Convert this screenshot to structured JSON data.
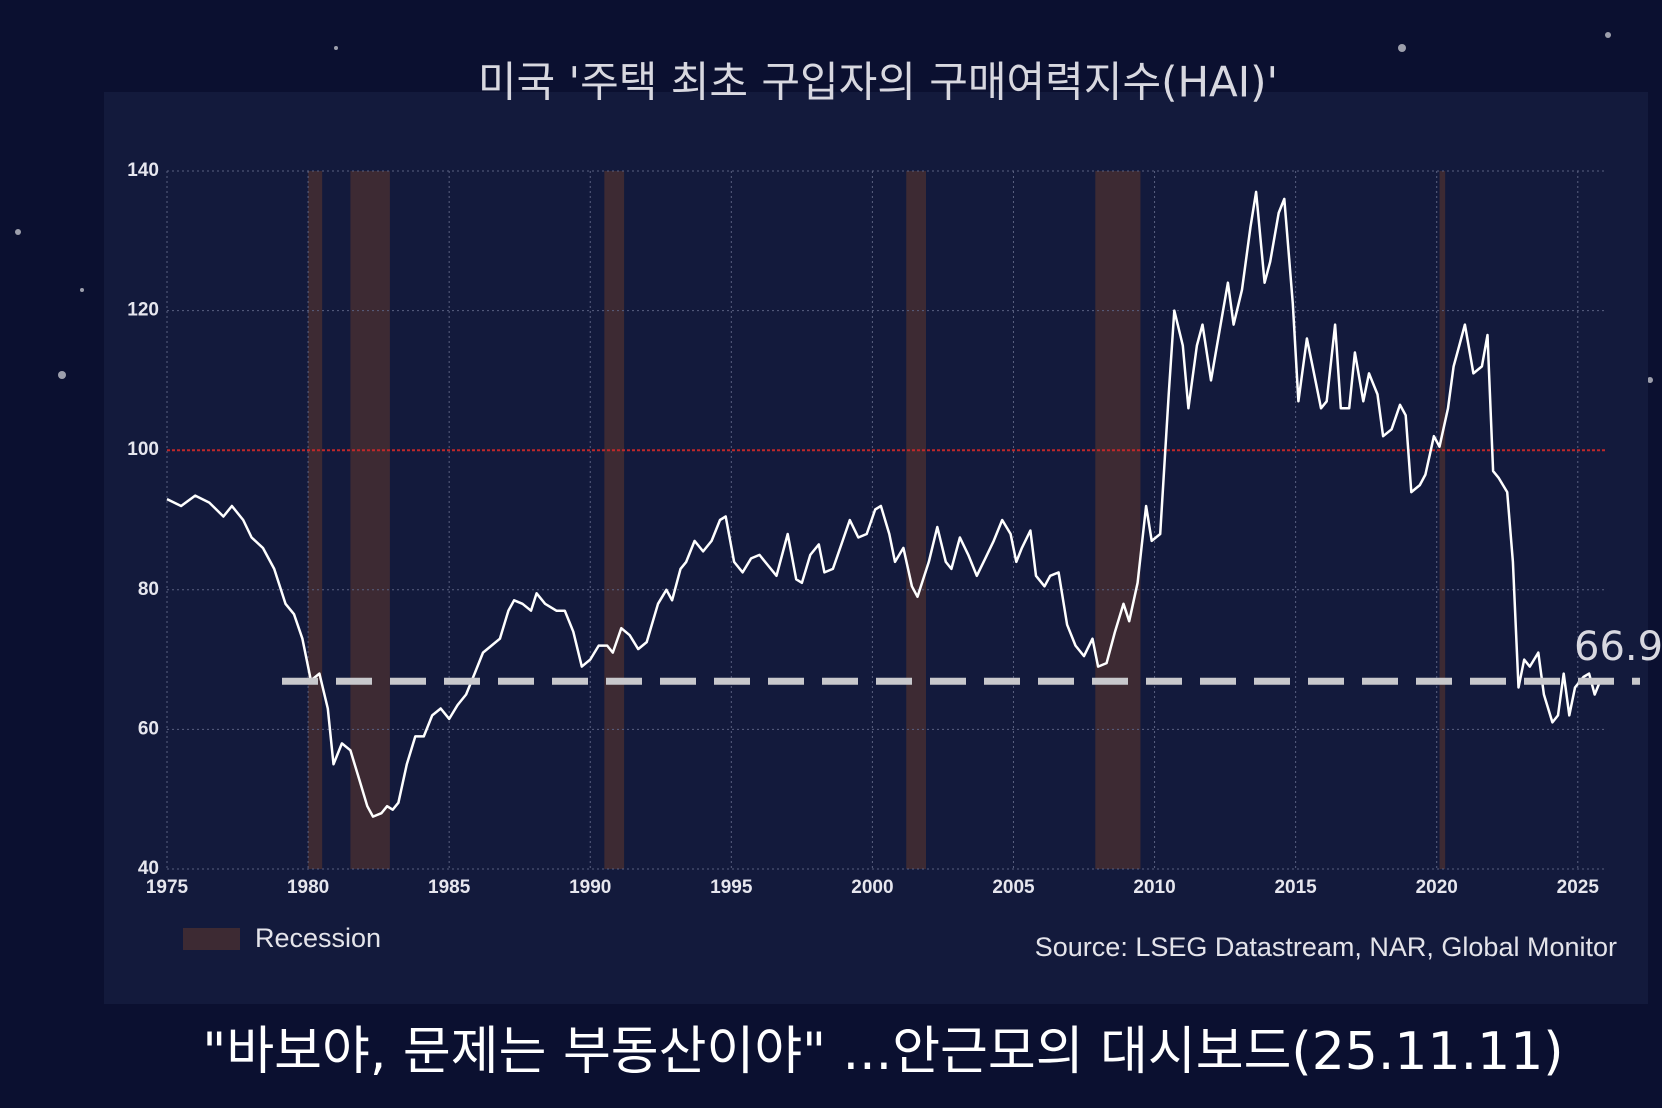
{
  "chart_data": {
    "type": "line",
    "title": "미국 '주택 최초 구입자의 구매여력지수(HAI)'",
    "caption": "\"바보야, 문제는 부동산이야\" ...안근모의 대시보드(25.11.11)",
    "source": "Source: LSEG Datastream, NAR, Global Monitor",
    "legend_label": "Recession",
    "color": "#ffffff",
    "recession_color": "#3d2a33",
    "threshold": 100,
    "threshold_color": "#c0282a",
    "reference_value": 66.9,
    "reference_color": "#c8c8cc",
    "grid": true,
    "xlim": [
      1975,
      2026
    ],
    "ylim": [
      40,
      140
    ],
    "xticks": [
      1975,
      1980,
      1985,
      1990,
      1995,
      2000,
      2005,
      2010,
      2015,
      2020,
      2025
    ],
    "yticks": [
      40,
      60,
      80,
      100,
      120,
      140
    ],
    "recessions": [
      [
        1980.0,
        1980.5
      ],
      [
        1981.5,
        1982.9
      ],
      [
        1990.5,
        1991.2
      ],
      [
        2001.2,
        2001.9
      ],
      [
        2007.9,
        2009.5
      ],
      [
        2020.1,
        2020.3
      ]
    ],
    "x": [
      1975.0,
      1975.5,
      1976.0,
      1976.5,
      1977.0,
      1977.3,
      1977.7,
      1978.0,
      1978.4,
      1978.8,
      1979.2,
      1979.5,
      1979.8,
      1980.1,
      1980.4,
      1980.7,
      1980.9,
      1981.2,
      1981.5,
      1981.8,
      1982.1,
      1982.3,
      1982.6,
      1982.8,
      1983.0,
      1983.2,
      1983.5,
      1983.8,
      1984.1,
      1984.4,
      1984.7,
      1985.0,
      1985.3,
      1985.6,
      1985.9,
      1986.2,
      1986.5,
      1986.8,
      1987.1,
      1987.3,
      1987.6,
      1987.9,
      1988.1,
      1988.4,
      1988.8,
      1989.1,
      1989.4,
      1989.7,
      1990.0,
      1990.3,
      1990.6,
      1990.8,
      1991.1,
      1991.4,
      1991.7,
      1992.0,
      1992.4,
      1992.7,
      1992.9,
      1993.2,
      1993.4,
      1993.7,
      1994.0,
      1994.3,
      1994.6,
      1994.8,
      1995.1,
      1995.4,
      1995.7,
      1996.0,
      1996.3,
      1996.6,
      1997.0,
      1997.3,
      1997.5,
      1997.8,
      1998.1,
      1998.3,
      1998.6,
      1998.9,
      1999.2,
      1999.5,
      1999.8,
      2000.1,
      2000.3,
      2000.6,
      2000.8,
      2001.1,
      2001.4,
      2001.6,
      2002.0,
      2002.3,
      2002.6,
      2002.8,
      2003.1,
      2003.4,
      2003.7,
      2004.0,
      2004.3,
      2004.6,
      2004.9,
      2005.1,
      2005.3,
      2005.6,
      2005.8,
      2006.1,
      2006.3,
      2006.6,
      2006.9,
      2007.2,
      2007.5,
      2007.8,
      2008.0,
      2008.3,
      2008.6,
      2008.9,
      2009.1,
      2009.4,
      2009.7,
      2009.9,
      2010.2,
      2010.5,
      2010.7,
      2011.0,
      2011.2,
      2011.5,
      2011.7,
      2012.0,
      2012.3,
      2012.6,
      2012.8,
      2013.1,
      2013.4,
      2013.6,
      2013.9,
      2014.1,
      2014.4,
      2014.6,
      2014.9,
      2015.1,
      2015.4,
      2015.6,
      2015.9,
      2016.1,
      2016.4,
      2016.6,
      2016.9,
      2017.1,
      2017.4,
      2017.6,
      2017.9,
      2018.1,
      2018.4,
      2018.7,
      2018.9,
      2019.1,
      2019.4,
      2019.6,
      2019.9,
      2020.1,
      2020.4,
      2020.6,
      2020.8,
      2021.0,
      2021.3,
      2021.6,
      2021.8,
      2022.0,
      2022.2,
      2022.5,
      2022.7,
      2022.9,
      2023.1,
      2023.3,
      2023.6,
      2023.8,
      2024.1,
      2024.3,
      2024.5,
      2024.7,
      2024.9,
      2025.2,
      2025.4,
      2025.6,
      2025.8
    ],
    "values": [
      93,
      92,
      93.5,
      92.5,
      90.5,
      92,
      90,
      87.5,
      86,
      83,
      78,
      76.5,
      73,
      67,
      68,
      63,
      55,
      58,
      57,
      53,
      49,
      47.5,
      48,
      49,
      48.5,
      49.5,
      55,
      59,
      59,
      62,
      63,
      61.5,
      63.5,
      65,
      68,
      71,
      72,
      73,
      77,
      78.5,
      78,
      77,
      79.5,
      78,
      77,
      77,
      74,
      69,
      70,
      72,
      72,
      71,
      74.5,
      73.5,
      71.5,
      72.5,
      78,
      80,
      78.5,
      83,
      84,
      87,
      85.5,
      87,
      90,
      90.5,
      84,
      82.5,
      84.5,
      85,
      83.5,
      82,
      88,
      81.5,
      81,
      85,
      86.5,
      82.5,
      83,
      86.5,
      90,
      87.5,
      88,
      91.5,
      92,
      88,
      84,
      86,
      80.5,
      79,
      84,
      89,
      84,
      83,
      87.5,
      85,
      82,
      84.5,
      87,
      90,
      88,
      84,
      86,
      88.5,
      82,
      80.5,
      82,
      82.5,
      75,
      72,
      70.5,
      73,
      69,
      69.5,
      74,
      78,
      75.5,
      81,
      92,
      87,
      88,
      108,
      120,
      115,
      106,
      115,
      118,
      110,
      117,
      124,
      118,
      123,
      132,
      137,
      124,
      127,
      134,
      136,
      121,
      107,
      116,
      112,
      106,
      107,
      118,
      106,
      106,
      114,
      107,
      111,
      108,
      102,
      103,
      106.5,
      105,
      94,
      95,
      96.5,
      102,
      100.5,
      106,
      112,
      115,
      118,
      111,
      112,
      116.5,
      97,
      96,
      94,
      84,
      66,
      70,
      69,
      71,
      65,
      61,
      62,
      68,
      62,
      66,
      67.5,
      68,
      65,
      67
    ]
  }
}
